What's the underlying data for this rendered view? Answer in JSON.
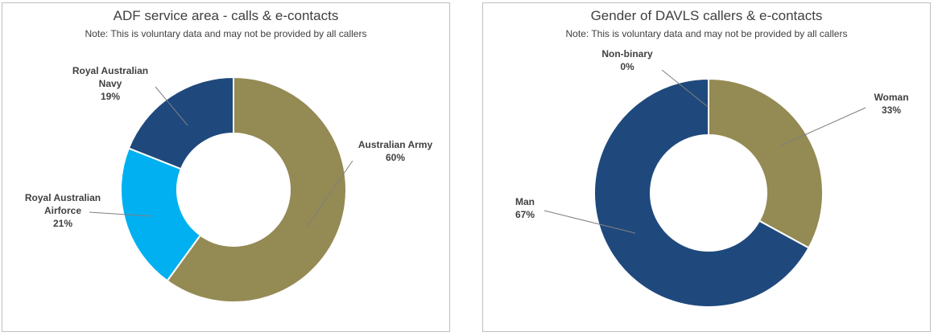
{
  "chart_data": [
    {
      "type": "pie",
      "donut": true,
      "title": "ADF service area - calls & e-contacts",
      "subtitle": "Note: This is voluntary data and may not be provided by all callers",
      "legend": "none",
      "slices": [
        {
          "label": "Australian Army",
          "value": 60,
          "value_label": "60%",
          "color": "#948a54"
        },
        {
          "label": "Royal Australian Airforce",
          "value": 21,
          "value_label": "21%",
          "color": "#00b0f0"
        },
        {
          "label": "Royal Australian Navy",
          "value": 19,
          "value_label": "19%",
          "color": "#1f497d"
        }
      ]
    },
    {
      "type": "pie",
      "donut": true,
      "title": "Gender of DAVLS callers & e-contacts",
      "subtitle": "Note: This is voluntary data and may not be provided by all callers",
      "legend": "none",
      "slices": [
        {
          "label": "Woman",
          "value": 33,
          "value_label": "33%",
          "color": "#948a54"
        },
        {
          "label": "Man",
          "value": 67,
          "value_label": "67%",
          "color": "#1f497d"
        },
        {
          "label": "Non-binary",
          "value": 0,
          "value_label": "0%",
          "color": "#00b0f0"
        }
      ]
    }
  ]
}
